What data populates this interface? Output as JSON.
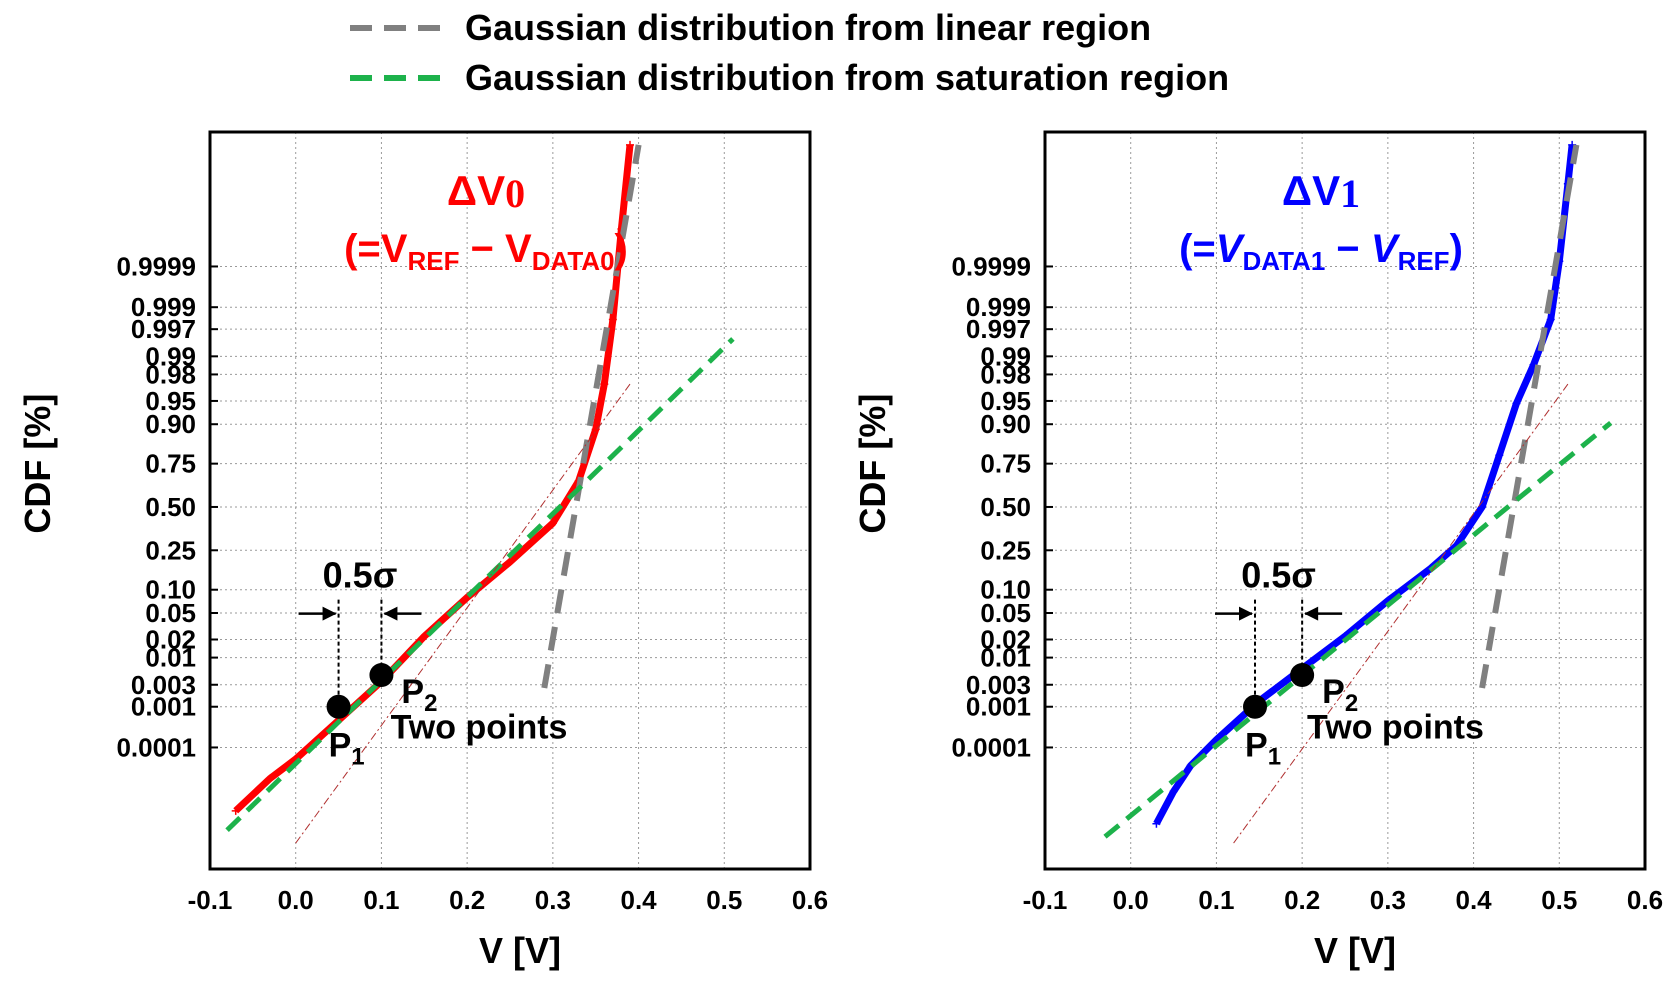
{
  "legend": [
    {
      "label": "Gaussian distribution from linear region",
      "color": "#808080",
      "style": "dashed"
    },
    {
      "label": "Gaussian distribution from saturation region",
      "color": "#1db24b",
      "style": "dashed"
    }
  ],
  "chart_data": [
    {
      "type": "line",
      "panel": "left",
      "title_main": "ΔV",
      "title_main_sub": "0",
      "title_expr": [
        {
          "t": "(=V",
          "sub": false,
          "italic": false
        },
        {
          "t": "REF",
          "sub": true,
          "italic": false
        },
        {
          "t": " − V",
          "sub": false,
          "italic": false
        },
        {
          "t": "DATA0",
          "sub": true,
          "italic": false
        },
        {
          "t": ")",
          "sub": false,
          "italic": false
        }
      ],
      "title_color": "#ff0000",
      "series_color": "#ff0000",
      "xlabel": "V [V]",
      "ylabel": "CDF [%]",
      "xlim": [
        -0.1,
        0.6
      ],
      "xticks": [
        "-0.1",
        "0.0",
        "0.1",
        "0.2",
        "0.3",
        "0.4",
        "0.5",
        "0.6"
      ],
      "y_scale": "normal probability",
      "yticks": [
        "0.9999",
        "0.999",
        "0.997",
        "0.99",
        "0.98",
        "0.95",
        "0.90",
        "0.75",
        "0.50",
        "0.25",
        "0.10",
        "0.05",
        "0.02",
        "0.01",
        "0.003",
        "0.001",
        "0.0001"
      ],
      "grid": true,
      "series": [
        {
          "values": [
            [
              -0.07,
              -4.7
            ],
            [
              -0.03,
              -4.2
            ],
            [
              0.0,
              -3.9
            ],
            [
              0.05,
              -3.3
            ],
            [
              0.1,
              -2.7
            ],
            [
              0.15,
              -2.0
            ],
            [
              0.2,
              -1.4
            ],
            [
              0.25,
              -0.85
            ],
            [
              0.3,
              -0.25
            ],
            [
              0.33,
              0.4
            ],
            [
              0.35,
              1.2
            ],
            [
              0.36,
              1.9
            ],
            [
              0.37,
              2.9
            ],
            [
              0.38,
              4.3
            ],
            [
              0.39,
              5.6
            ]
          ]
        },
        {
          "values": [
            [
              0.29,
              -2.8
            ],
            [
              0.4,
              5.6
            ]
          ]
        },
        {
          "values": [
            [
              -0.08,
              -5.0
            ],
            [
              0.51,
              2.6
            ]
          ]
        },
        {
          "values": [
            [
              -0.0,
              -5.2
            ],
            [
              0.39,
              1.9
            ]
          ]
        }
      ],
      "annotations": {
        "sigma_label": "0.5σ",
        "point1_label": "P",
        "point1_sub": "1",
        "point2_label": "P",
        "point2_sub": "2",
        "points_label": "Two points",
        "point1": [
          0.05,
          -3.09
        ],
        "point2": [
          0.1,
          -2.6
        ]
      }
    },
    {
      "type": "line",
      "panel": "right",
      "title_main": "ΔV",
      "title_main_sub": "1",
      "title_expr": [
        {
          "t": "(=",
          "sub": false,
          "italic": false
        },
        {
          "t": "V",
          "sub": false,
          "italic": true
        },
        {
          "t": "DATA1",
          "sub": true,
          "italic": false
        },
        {
          "t": " − ",
          "sub": false,
          "italic": false
        },
        {
          "t": "V",
          "sub": false,
          "italic": true
        },
        {
          "t": "REF",
          "sub": true,
          "italic": false
        },
        {
          "t": ")",
          "sub": false,
          "italic": false
        }
      ],
      "title_color": "#0000ff",
      "series_color": "#0000ff",
      "xlabel": "V [V]",
      "ylabel": "CDF [%]",
      "xlim": [
        -0.1,
        0.6
      ],
      "xticks": [
        "-0.1",
        "0.0",
        "0.1",
        "0.2",
        "0.3",
        "0.4",
        "0.5",
        "0.6"
      ],
      "y_scale": "normal probability",
      "yticks": [
        "0.9999",
        "0.999",
        "0.997",
        "0.99",
        "0.98",
        "0.95",
        "0.90",
        "0.75",
        "0.50",
        "0.25",
        "0.10",
        "0.05",
        "0.02",
        "0.01",
        "0.003",
        "0.001",
        "0.0001"
      ],
      "grid": true,
      "series": [
        {
          "values": [
            [
              0.03,
              -4.9
            ],
            [
              0.05,
              -4.4
            ],
            [
              0.07,
              -4.0
            ],
            [
              0.1,
              -3.6
            ],
            [
              0.15,
              -3.0
            ],
            [
              0.2,
              -2.5
            ],
            [
              0.25,
              -2.0
            ],
            [
              0.3,
              -1.45
            ],
            [
              0.35,
              -0.95
            ],
            [
              0.38,
              -0.6
            ],
            [
              0.41,
              0.0
            ],
            [
              0.43,
              0.8
            ],
            [
              0.45,
              1.6
            ],
            [
              0.47,
              2.2
            ],
            [
              0.49,
              2.9
            ],
            [
              0.5,
              3.8
            ],
            [
              0.51,
              5.0
            ],
            [
              0.515,
              5.6
            ]
          ]
        },
        {
          "values": [
            [
              0.41,
              -2.8
            ],
            [
              0.52,
              5.6
            ]
          ]
        },
        {
          "values": [
            [
              -0.03,
              -5.1
            ],
            [
              0.56,
              1.3
            ]
          ]
        },
        {
          "values": [
            [
              0.12,
              -5.2
            ],
            [
              0.51,
              1.9
            ]
          ]
        }
      ],
      "annotations": {
        "sigma_label": "0.5σ",
        "point1_label": "P",
        "point1_sub": "1",
        "point2_label": "P",
        "point2_sub": "2",
        "points_label": "Two points",
        "point1": [
          0.145,
          -3.09
        ],
        "point2": [
          0.2,
          -2.6
        ]
      }
    }
  ]
}
